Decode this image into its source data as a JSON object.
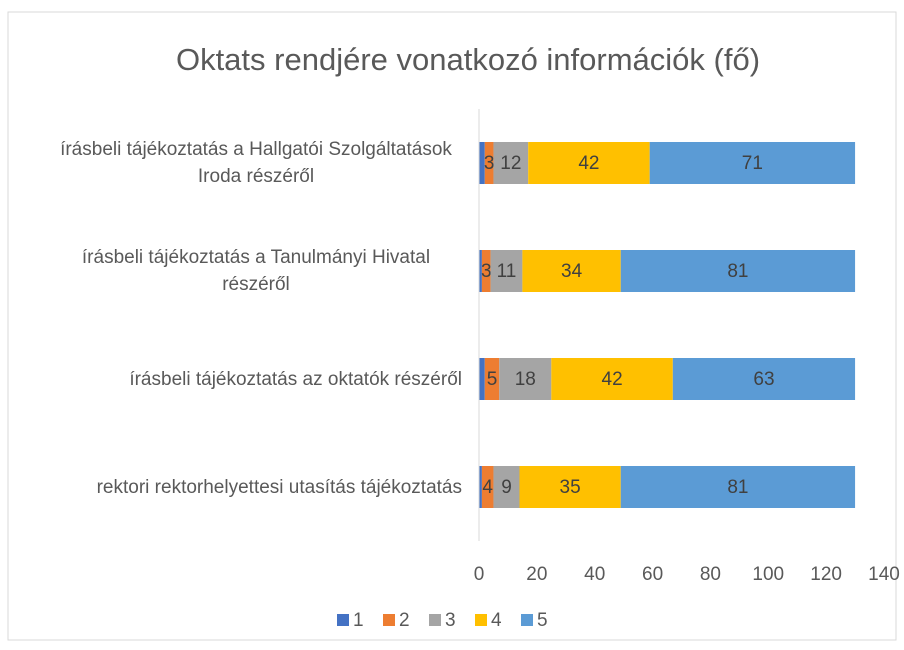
{
  "chart_data": {
    "type": "stacked_bar_horizontal",
    "title": "Oktats rendjére vonatkozó információk (fő)",
    "categories": [
      "írásbeli tájékoztatás a Hallgatói Szolgáltatások Iroda részéről",
      "írásbeli tájékoztatás a Tanulmányi Hivatal részéről",
      "írásbeli tájékoztatás az oktatók részéről",
      "rektori rektorhelyettesi utasítás tájékoztatás"
    ],
    "series": [
      {
        "name": "1",
        "color": "#4472c4",
        "values": [
          2,
          1,
          2,
          1
        ],
        "show_labels": false
      },
      {
        "name": "2",
        "color": "#ed7d31",
        "values": [
          3,
          3,
          5,
          4
        ],
        "show_labels": true
      },
      {
        "name": "3",
        "color": "#a5a5a5",
        "values": [
          12,
          11,
          18,
          9
        ],
        "show_labels": true
      },
      {
        "name": "4",
        "color": "#ffc000",
        "values": [
          42,
          34,
          42,
          35
        ],
        "show_labels": true
      },
      {
        "name": "5",
        "color": "#5b9bd5",
        "values": [
          71,
          81,
          63,
          81
        ],
        "show_labels": true
      }
    ],
    "xlim": [
      0,
      140
    ],
    "xticks": [
      0,
      20,
      40,
      60,
      80,
      100,
      120,
      140
    ],
    "legend": "bottom",
    "grid": false
  }
}
